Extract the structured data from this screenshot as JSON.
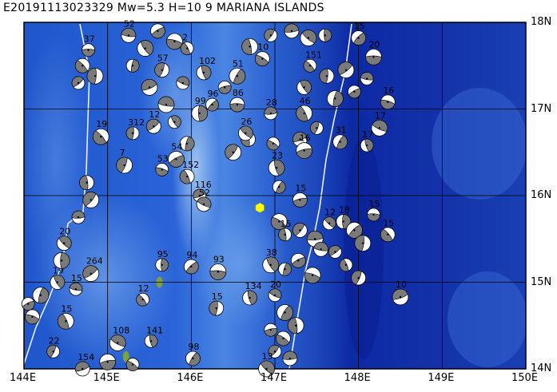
{
  "title": "E20191113023329 Mw=5.3 H=10   9 MARIANA ISLANDS",
  "map": {
    "lon_range": [
      144,
      150
    ],
    "lat_range": [
      14,
      18
    ],
    "lon_labels": [
      "144E",
      "145E",
      "146E",
      "147E",
      "148E",
      "149E",
      "150E"
    ],
    "lat_labels": [
      "18N",
      "17N",
      "16N",
      "15N",
      "14N"
    ],
    "colors": {
      "ocean_deep": "#0d1f9e",
      "ocean_mid": "#1f4fc8",
      "ocean_shallow": "#5b8fe0",
      "ridge": "#9fc4f0",
      "trench_line": "#e8eef8",
      "event_marker": "#ffff00",
      "island": "#7fa040"
    },
    "event": {
      "lon": 146.82,
      "lat": 15.86,
      "symbol": "yellow-hexagon"
    },
    "islands": [
      {
        "name": "",
        "lon": 145.62,
        "lat": 15.0
      },
      {
        "name": "",
        "lon": 145.22,
        "lat": 14.14
      }
    ],
    "mechanisms": [
      {
        "label": "37",
        "lon": 144.77,
        "lat": 17.68
      },
      {
        "label": "",
        "lon": 144.7,
        "lat": 17.5
      },
      {
        "label": "",
        "lon": 144.85,
        "lat": 17.38
      },
      {
        "label": "",
        "lon": 144.65,
        "lat": 17.3
      },
      {
        "label": "52",
        "lon": 145.25,
        "lat": 17.85
      },
      {
        "label": "",
        "lon": 145.45,
        "lat": 17.7
      },
      {
        "label": "",
        "lon": 145.3,
        "lat": 17.5
      },
      {
        "label": "",
        "lon": 145.6,
        "lat": 17.9
      },
      {
        "label": "",
        "lon": 145.8,
        "lat": 17.78
      },
      {
        "label": "2",
        "lon": 145.95,
        "lat": 17.7
      },
      {
        "label": "57",
        "lon": 145.65,
        "lat": 17.45
      },
      {
        "label": "",
        "lon": 145.5,
        "lat": 17.25
      },
      {
        "label": "",
        "lon": 145.9,
        "lat": 17.3
      },
      {
        "label": "102",
        "lon": 146.15,
        "lat": 17.42
      },
      {
        "label": "51",
        "lon": 146.55,
        "lat": 17.38
      },
      {
        "label": "",
        "lon": 146.4,
        "lat": 17.25
      },
      {
        "label": "10",
        "lon": 146.85,
        "lat": 17.58
      },
      {
        "label": "",
        "lon": 146.7,
        "lat": 17.72
      },
      {
        "label": "",
        "lon": 146.95,
        "lat": 17.85
      },
      {
        "label": "",
        "lon": 147.2,
        "lat": 17.9
      },
      {
        "label": "",
        "lon": 147.4,
        "lat": 17.82
      },
      {
        "label": "",
        "lon": 147.6,
        "lat": 17.85
      },
      {
        "label": "15",
        "lon": 148.0,
        "lat": 17.82
      },
      {
        "label": "20",
        "lon": 148.18,
        "lat": 17.6
      },
      {
        "label": "151",
        "lon": 147.42,
        "lat": 17.5
      },
      {
        "label": "",
        "lon": 147.62,
        "lat": 17.38
      },
      {
        "label": "",
        "lon": 147.85,
        "lat": 17.45
      },
      {
        "label": "",
        "lon": 148.1,
        "lat": 17.35
      },
      {
        "label": "",
        "lon": 147.35,
        "lat": 17.25
      },
      {
        "label": "",
        "lon": 147.72,
        "lat": 17.12
      },
      {
        "label": "",
        "lon": 147.95,
        "lat": 17.2
      },
      {
        "label": "16",
        "lon": 148.35,
        "lat": 17.08
      },
      {
        "label": "46",
        "lon": 147.35,
        "lat": 16.95
      },
      {
        "label": "",
        "lon": 147.5,
        "lat": 16.78
      },
      {
        "label": "",
        "lon": 147.3,
        "lat": 16.65
      },
      {
        "label": "17",
        "lon": 148.25,
        "lat": 16.78
      },
      {
        "label": "17",
        "lon": 148.1,
        "lat": 16.58
      },
      {
        "label": "31",
        "lon": 147.78,
        "lat": 16.62
      },
      {
        "label": "16",
        "lon": 147.35,
        "lat": 16.52
      },
      {
        "label": "",
        "lon": 146.98,
        "lat": 16.6
      },
      {
        "label": "",
        "lon": 146.68,
        "lat": 16.65
      },
      {
        "label": "",
        "lon": 146.5,
        "lat": 16.5
      },
      {
        "label": "28",
        "lon": 146.95,
        "lat": 16.95
      },
      {
        "label": "26",
        "lon": 146.65,
        "lat": 16.72
      },
      {
        "label": "99",
        "lon": 146.1,
        "lat": 16.95
      },
      {
        "label": "96",
        "lon": 146.25,
        "lat": 17.05
      },
      {
        "label": "86",
        "lon": 146.55,
        "lat": 17.05
      },
      {
        "label": "19",
        "lon": 144.92,
        "lat": 16.68
      },
      {
        "label": "312",
        "lon": 145.3,
        "lat": 16.72
      },
      {
        "label": "12",
        "lon": 145.55,
        "lat": 16.8
      },
      {
        "label": "",
        "lon": 145.7,
        "lat": 17.05
      },
      {
        "label": "",
        "lon": 145.8,
        "lat": 16.85
      },
      {
        "label": "",
        "lon": 145.95,
        "lat": 16.6
      },
      {
        "label": "54",
        "lon": 145.82,
        "lat": 16.42
      },
      {
        "label": "53",
        "lon": 145.65,
        "lat": 16.3
      },
      {
        "label": "152",
        "lon": 145.95,
        "lat": 16.22
      },
      {
        "label": "7",
        "lon": 145.2,
        "lat": 16.35
      },
      {
        "label": "116",
        "lon": 146.1,
        "lat": 16.0
      },
      {
        "label": "52",
        "lon": 146.15,
        "lat": 15.9
      },
      {
        "label": "23",
        "lon": 147.02,
        "lat": 16.32
      },
      {
        "label": "",
        "lon": 147.05,
        "lat": 16.1
      },
      {
        "label": "15",
        "lon": 147.3,
        "lat": 15.95
      },
      {
        "label": "",
        "lon": 147.05,
        "lat": 15.7
      },
      {
        "label": "15",
        "lon": 147.12,
        "lat": 15.55
      },
      {
        "label": "",
        "lon": 147.3,
        "lat": 15.6
      },
      {
        "label": "",
        "lon": 147.48,
        "lat": 15.5
      },
      {
        "label": "12",
        "lon": 147.65,
        "lat": 15.68
      },
      {
        "label": "18",
        "lon": 147.82,
        "lat": 15.7
      },
      {
        "label": "",
        "lon": 147.95,
        "lat": 15.6
      },
      {
        "label": "15",
        "lon": 148.18,
        "lat": 15.78
      },
      {
        "label": "15",
        "lon": 148.35,
        "lat": 15.55
      },
      {
        "label": "",
        "lon": 148.05,
        "lat": 15.45
      },
      {
        "label": "",
        "lon": 147.72,
        "lat": 15.35
      },
      {
        "label": "",
        "lon": 147.55,
        "lat": 15.38
      },
      {
        "label": "38",
        "lon": 146.95,
        "lat": 15.2
      },
      {
        "label": "",
        "lon": 147.12,
        "lat": 15.15
      },
      {
        "label": "",
        "lon": 147.28,
        "lat": 15.25
      },
      {
        "label": "",
        "lon": 147.45,
        "lat": 15.08
      },
      {
        "label": "",
        "lon": 147.85,
        "lat": 15.2
      },
      {
        "label": "",
        "lon": 148.0,
        "lat": 15.05
      },
      {
        "label": "10",
        "lon": 148.5,
        "lat": 14.83
      },
      {
        "label": "20",
        "lon": 147.0,
        "lat": 14.85
      },
      {
        "label": "134",
        "lon": 146.7,
        "lat": 14.82
      },
      {
        "label": "",
        "lon": 147.12,
        "lat": 14.65
      },
      {
        "label": "",
        "lon": 146.95,
        "lat": 14.45
      },
      {
        "label": "",
        "lon": 147.1,
        "lat": 14.35
      },
      {
        "label": "",
        "lon": 147.25,
        "lat": 14.5
      },
      {
        "label": "",
        "lon": 147.0,
        "lat": 14.2
      },
      {
        "label": "",
        "lon": 147.18,
        "lat": 14.12
      },
      {
        "label": "13",
        "lon": 146.9,
        "lat": 14.0
      },
      {
        "label": "95",
        "lon": 145.65,
        "lat": 15.2
      },
      {
        "label": "94",
        "lon": 146.0,
        "lat": 15.18
      },
      {
        "label": "93",
        "lon": 146.32,
        "lat": 15.12
      },
      {
        "label": "12",
        "lon": 145.42,
        "lat": 14.8
      },
      {
        "label": "15",
        "lon": 146.3,
        "lat": 14.7
      },
      {
        "label": "264",
        "lon": 144.8,
        "lat": 15.1
      },
      {
        "label": "15",
        "lon": 144.62,
        "lat": 14.92
      },
      {
        "label": "19",
        "lon": 144.4,
        "lat": 15.0
      },
      {
        "label": "",
        "lon": 144.2,
        "lat": 14.85
      },
      {
        "label": "",
        "lon": 144.05,
        "lat": 14.75
      },
      {
        "label": "",
        "lon": 144.1,
        "lat": 14.6
      },
      {
        "label": "15",
        "lon": 144.5,
        "lat": 14.55
      },
      {
        "label": "22",
        "lon": 144.35,
        "lat": 14.2
      },
      {
        "label": "154",
        "lon": 144.7,
        "lat": 14.0
      },
      {
        "label": "108",
        "lon": 145.12,
        "lat": 14.3
      },
      {
        "label": "141",
        "lon": 145.52,
        "lat": 14.32
      },
      {
        "label": "98",
        "lon": 146.02,
        "lat": 14.12
      },
      {
        "label": "",
        "lon": 145.0,
        "lat": 14.08
      },
      {
        "label": "",
        "lon": 145.3,
        "lat": 14.05
      },
      {
        "label": "",
        "lon": 144.75,
        "lat": 16.15
      },
      {
        "label": "",
        "lon": 144.8,
        "lat": 15.95
      },
      {
        "label": "",
        "lon": 144.65,
        "lat": 15.75
      },
      {
        "label": "20",
        "lon": 144.48,
        "lat": 15.45
      },
      {
        "label": "",
        "lon": 144.45,
        "lat": 15.25
      }
    ]
  }
}
